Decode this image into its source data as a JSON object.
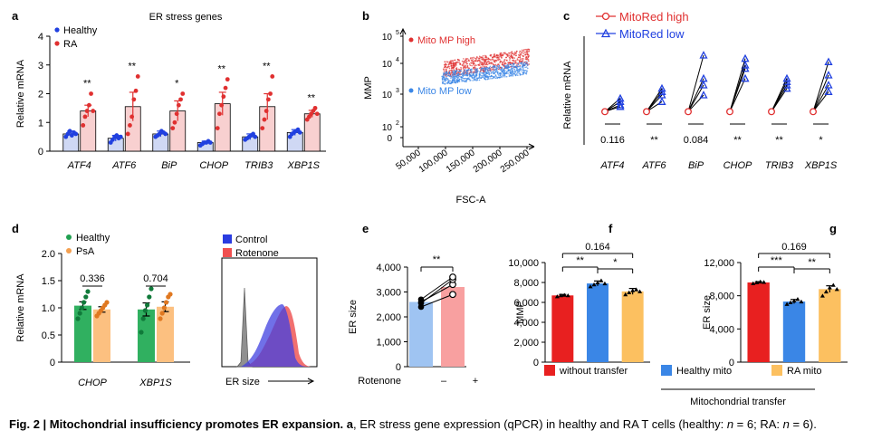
{
  "figure": {
    "caption": {
      "fig_label": "Fig. 2 | Mitochondrial insufficiency promotes ER expansion.",
      "panel": "a",
      "text1": ", ER stress gene expression (qPCR) in healthy and RA T cells (healthy: ",
      "n": "n",
      "eq1": " = 6; RA: ",
      "eq2": " = 6)."
    },
    "colors": {
      "healthy_blue": "#2040e0",
      "ra_red": "#e03030",
      "red_fill": "#f8d0d0",
      "blue_fill": "#cfd8f4",
      "psa_orange": "#f4a050",
      "green": "#20a050",
      "green_fill": "#30b060",
      "orange_fill": "#fcc080",
      "mito_red": "#e82020",
      "mito_blue": "#3a86e6",
      "mito_orange": "#fcc060",
      "gray": "#808080"
    }
  },
  "chart_data": [
    {
      "id": "a",
      "panel_label": "a",
      "type": "bar",
      "title": "ER stress genes",
      "ylabel": "Relative mRNA",
      "ylim": [
        0,
        4
      ],
      "yticks": [
        "0",
        "1",
        "2",
        "3",
        "4"
      ],
      "legend": [
        "Healthy",
        "RA"
      ],
      "categories": [
        "ATF4",
        "ATF6",
        "BiP",
        "CHOP",
        "TRIB3",
        "XBP1S"
      ],
      "series": [
        {
          "name": "Healthy",
          "values": [
            0.6,
            0.45,
            0.6,
            0.3,
            0.5,
            0.65
          ],
          "err": [
            0.1,
            0.1,
            0.1,
            0.05,
            0.1,
            0.1
          ]
        },
        {
          "name": "RA",
          "values": [
            1.4,
            1.55,
            1.4,
            1.65,
            1.55,
            1.3
          ],
          "err": [
            0.2,
            0.5,
            0.35,
            0.4,
            0.45,
            0.12
          ]
        }
      ],
      "points": [
        [
          [
            0.5,
            0.6,
            0.7,
            0.55,
            0.65,
            0.6
          ],
          [
            0.9,
            1.2,
            1.4,
            1.6,
            2.0,
            1.4
          ]
        ],
        [
          [
            0.3,
            0.4,
            0.5,
            0.55,
            0.45,
            0.5
          ],
          [
            0.6,
            0.9,
            1.2,
            1.8,
            2.1,
            2.6
          ]
        ],
        [
          [
            0.5,
            0.55,
            0.6,
            0.7,
            0.65,
            0.6
          ],
          [
            0.8,
            1.0,
            1.3,
            1.6,
            1.8,
            2.0
          ]
        ],
        [
          [
            0.2,
            0.25,
            0.3,
            0.3,
            0.35,
            0.3
          ],
          [
            0.8,
            1.3,
            1.6,
            1.9,
            2.2,
            2.5
          ]
        ],
        [
          [
            0.4,
            0.45,
            0.5,
            0.55,
            0.6,
            0.5
          ],
          [
            0.8,
            1.1,
            1.4,
            1.8,
            2.0,
            2.6
          ]
        ],
        [
          [
            0.5,
            0.6,
            0.65,
            0.7,
            0.75,
            0.65
          ],
          [
            1.1,
            1.2,
            1.3,
            1.4,
            1.5,
            1.3
          ]
        ]
      ],
      "significance": [
        "**",
        "**",
        "*",
        "**",
        "**",
        "**"
      ]
    },
    {
      "id": "b",
      "panel_label": "b",
      "type": "scatter",
      "xlabel": "FSC-A",
      "ylabel": "MMP",
      "xticks": [
        "50,000",
        "100,000",
        "150,000",
        "200,000",
        "250,000"
      ],
      "yticks": [
        "0",
        "10",
        "10",
        "10",
        "10"
      ],
      "ytick_exps": [
        "",
        "2",
        "3",
        "4",
        "5"
      ],
      "groups": [
        "Mito MP high",
        "Mito MP low"
      ]
    },
    {
      "id": "c",
      "panel_label": "c",
      "type": "line",
      "ylabel": "Relative mRNA",
      "legend": [
        "MitoRed high",
        "MitoRed low"
      ],
      "categories": [
        "ATF4",
        "ATF6",
        "BiP",
        "CHOP",
        "TRIB3",
        "XBP1S"
      ],
      "high": [
        1,
        1,
        1,
        1,
        1,
        1
      ],
      "low": [
        [
          1.2,
          1.3,
          1.4,
          1.15
        ],
        [
          1.3,
          1.5,
          1.6,
          1.7
        ],
        [
          1.5,
          1.8,
          2.0,
          2.7
        ],
        [
          2.0,
          2.3,
          2.4,
          2.6
        ],
        [
          1.7,
          1.8,
          1.9,
          2.0
        ],
        [
          1.6,
          1.8,
          2.1,
          2.5
        ]
      ],
      "annotations": [
        "0.116",
        "**",
        "0.084",
        "**",
        "**",
        "*"
      ]
    },
    {
      "id": "d",
      "panel_label": "d",
      "type": "bar",
      "ylabel": "Relative mRNA",
      "ylim": [
        0,
        2
      ],
      "yticks": [
        "0",
        "0.5",
        "1.0",
        "1.5",
        "2.0"
      ],
      "legend": [
        "Healthy",
        "PsA"
      ],
      "categories": [
        "CHOP",
        "XBP1S"
      ],
      "series": [
        {
          "name": "Healthy",
          "values": [
            1.04,
            0.97
          ],
          "err": [
            0.07,
            0.12
          ]
        },
        {
          "name": "PsA",
          "values": [
            0.97,
            1.02
          ],
          "err": [
            0.05,
            0.09
          ]
        }
      ],
      "points": [
        [
          [
            0.8,
            0.9,
            1.0,
            1.1,
            1.2,
            1.3
          ],
          [
            0.85,
            0.9,
            0.95,
            1.0,
            1.05,
            1.1
          ]
        ],
        [
          [
            0.55,
            0.8,
            0.95,
            1.05,
            1.2,
            1.35
          ],
          [
            0.8,
            0.9,
            1.0,
            1.1,
            1.2,
            1.25
          ]
        ]
      ],
      "pvalues": [
        "0.336",
        "0.704"
      ]
    },
    {
      "id": "d2",
      "type": "area",
      "legend": [
        "Control",
        "Rotenone"
      ],
      "xlabel": "ER size"
    },
    {
      "id": "e",
      "panel_label": "e",
      "type": "bar",
      "ylabel": "ER size",
      "ylim": [
        0,
        4000
      ],
      "yticks": [
        "0",
        "1,000",
        "2,000",
        "3,000",
        "4,000"
      ],
      "categories": [
        "–",
        "+"
      ],
      "values": [
        2600,
        3200
      ],
      "pairs": [
        [
          2400,
          2900
        ],
        [
          2600,
          3300
        ],
        [
          2550,
          3500
        ],
        [
          2700,
          3600
        ]
      ],
      "row_label": "Rotenone",
      "significance": "**"
    },
    {
      "id": "f",
      "panel_label": "f",
      "type": "bar",
      "ylabel": "MMP",
      "ylim": [
        0,
        10000
      ],
      "yticks": [
        "0",
        "2,000",
        "4,000",
        "6,000",
        "8,000",
        "10,000"
      ],
      "categories": [
        "without transfer",
        "Healthy mito",
        "RA mito"
      ],
      "values": [
        6700,
        7900,
        7100
      ],
      "err": [
        100,
        250,
        300
      ],
      "points": [
        [
          6600,
          6700,
          6750,
          6700
        ],
        [
          7600,
          7800,
          8000,
          8200,
          7900
        ],
        [
          6800,
          7000,
          7200,
          7300,
          7100
        ]
      ],
      "comparisons": [
        {
          "pair": [
            0,
            2
          ],
          "label": "0.164"
        },
        {
          "pair": [
            0,
            1
          ],
          "label": "**"
        },
        {
          "pair": [
            1,
            2
          ],
          "label": "*"
        }
      ]
    },
    {
      "id": "g",
      "panel_label": "g",
      "type": "bar",
      "ylabel": "ER size",
      "ylim": [
        0,
        12000
      ],
      "yticks": [
        "0",
        "4,000",
        "8,000",
        "12,000"
      ],
      "categories": [
        "without transfer",
        "Healthy mito",
        "RA mito"
      ],
      "values": [
        9600,
        7300,
        8800
      ],
      "err": [
        100,
        250,
        400
      ],
      "points": [
        [
          9500,
          9600,
          9700,
          9650
        ],
        [
          7000,
          7200,
          7400,
          7600,
          7300
        ],
        [
          8000,
          8500,
          9000,
          9300,
          8800
        ]
      ],
      "comparisons": [
        {
          "pair": [
            0,
            2
          ],
          "label": "0.169"
        },
        {
          "pair": [
            0,
            1
          ],
          "label": "***"
        },
        {
          "pair": [
            1,
            2
          ],
          "label": "**"
        }
      ],
      "legend": [
        "without transfer",
        "Healthy mito",
        "RA mito"
      ],
      "group_label": "Mitochondrial transfer"
    }
  ]
}
